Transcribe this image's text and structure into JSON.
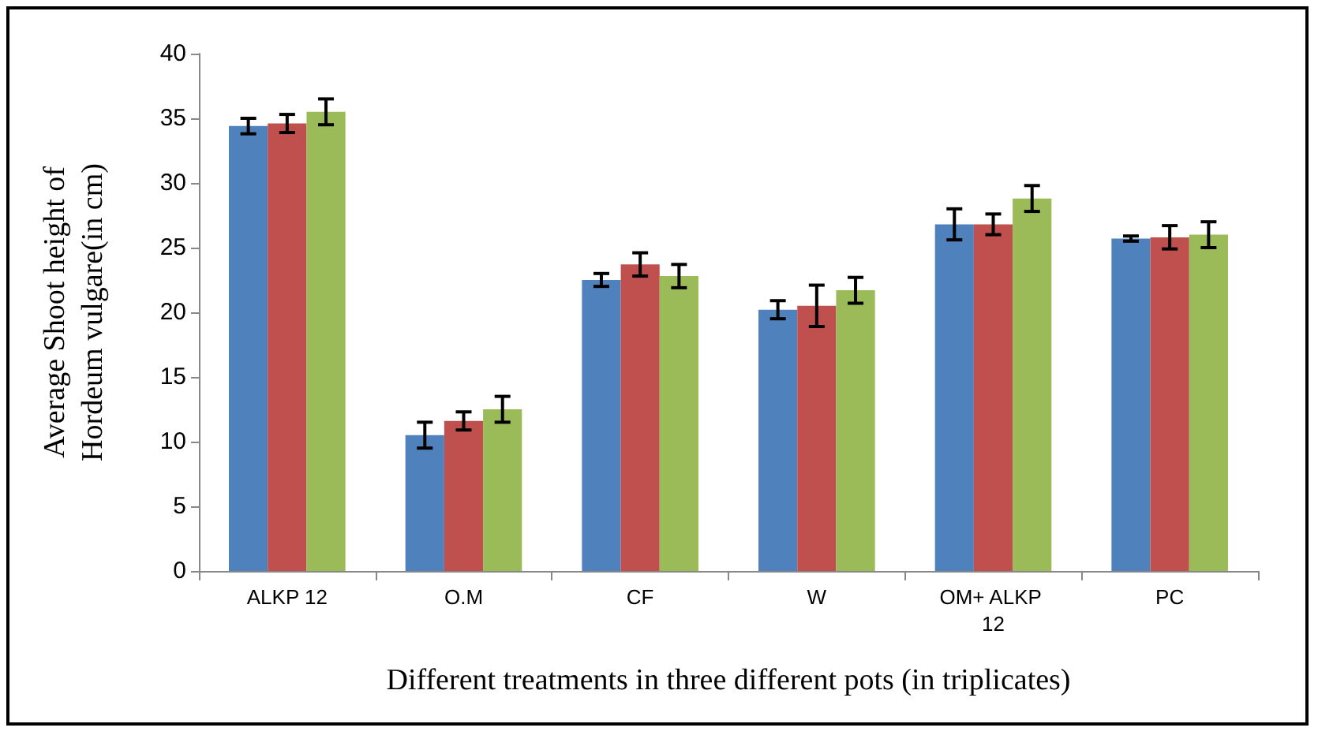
{
  "chart_data": {
    "type": "bar",
    "xlabel": "Different treatments in three different pots (in triplicates)",
    "ylabel": "Average Shoot height of Hordeum vulgare(in cm)",
    "categories": [
      "ALKP 12",
      "O.M",
      "CF",
      "W",
      "OM+ ALKP 12",
      "PC"
    ],
    "series": [
      {
        "color": "#4f81bd",
        "values": [
          34.4,
          10.5,
          22.5,
          20.2,
          26.8,
          25.7
        ],
        "errors": [
          0.6,
          1.0,
          0.5,
          0.7,
          1.2,
          0.2
        ]
      },
      {
        "color": "#c0504d",
        "values": [
          34.6,
          11.6,
          23.7,
          20.5,
          26.8,
          25.8
        ],
        "errors": [
          0.7,
          0.7,
          0.9,
          1.6,
          0.8,
          0.9
        ]
      },
      {
        "color": "#9bbb59",
        "values": [
          35.5,
          12.5,
          22.8,
          21.7,
          28.8,
          26.0
        ],
        "errors": [
          1.0,
          1.0,
          0.9,
          1.0,
          1.0,
          1.0
        ]
      }
    ],
    "ylim": [
      0,
      40
    ],
    "yticks": [
      0,
      5,
      10,
      15,
      20,
      25,
      30,
      35,
      40
    ]
  }
}
